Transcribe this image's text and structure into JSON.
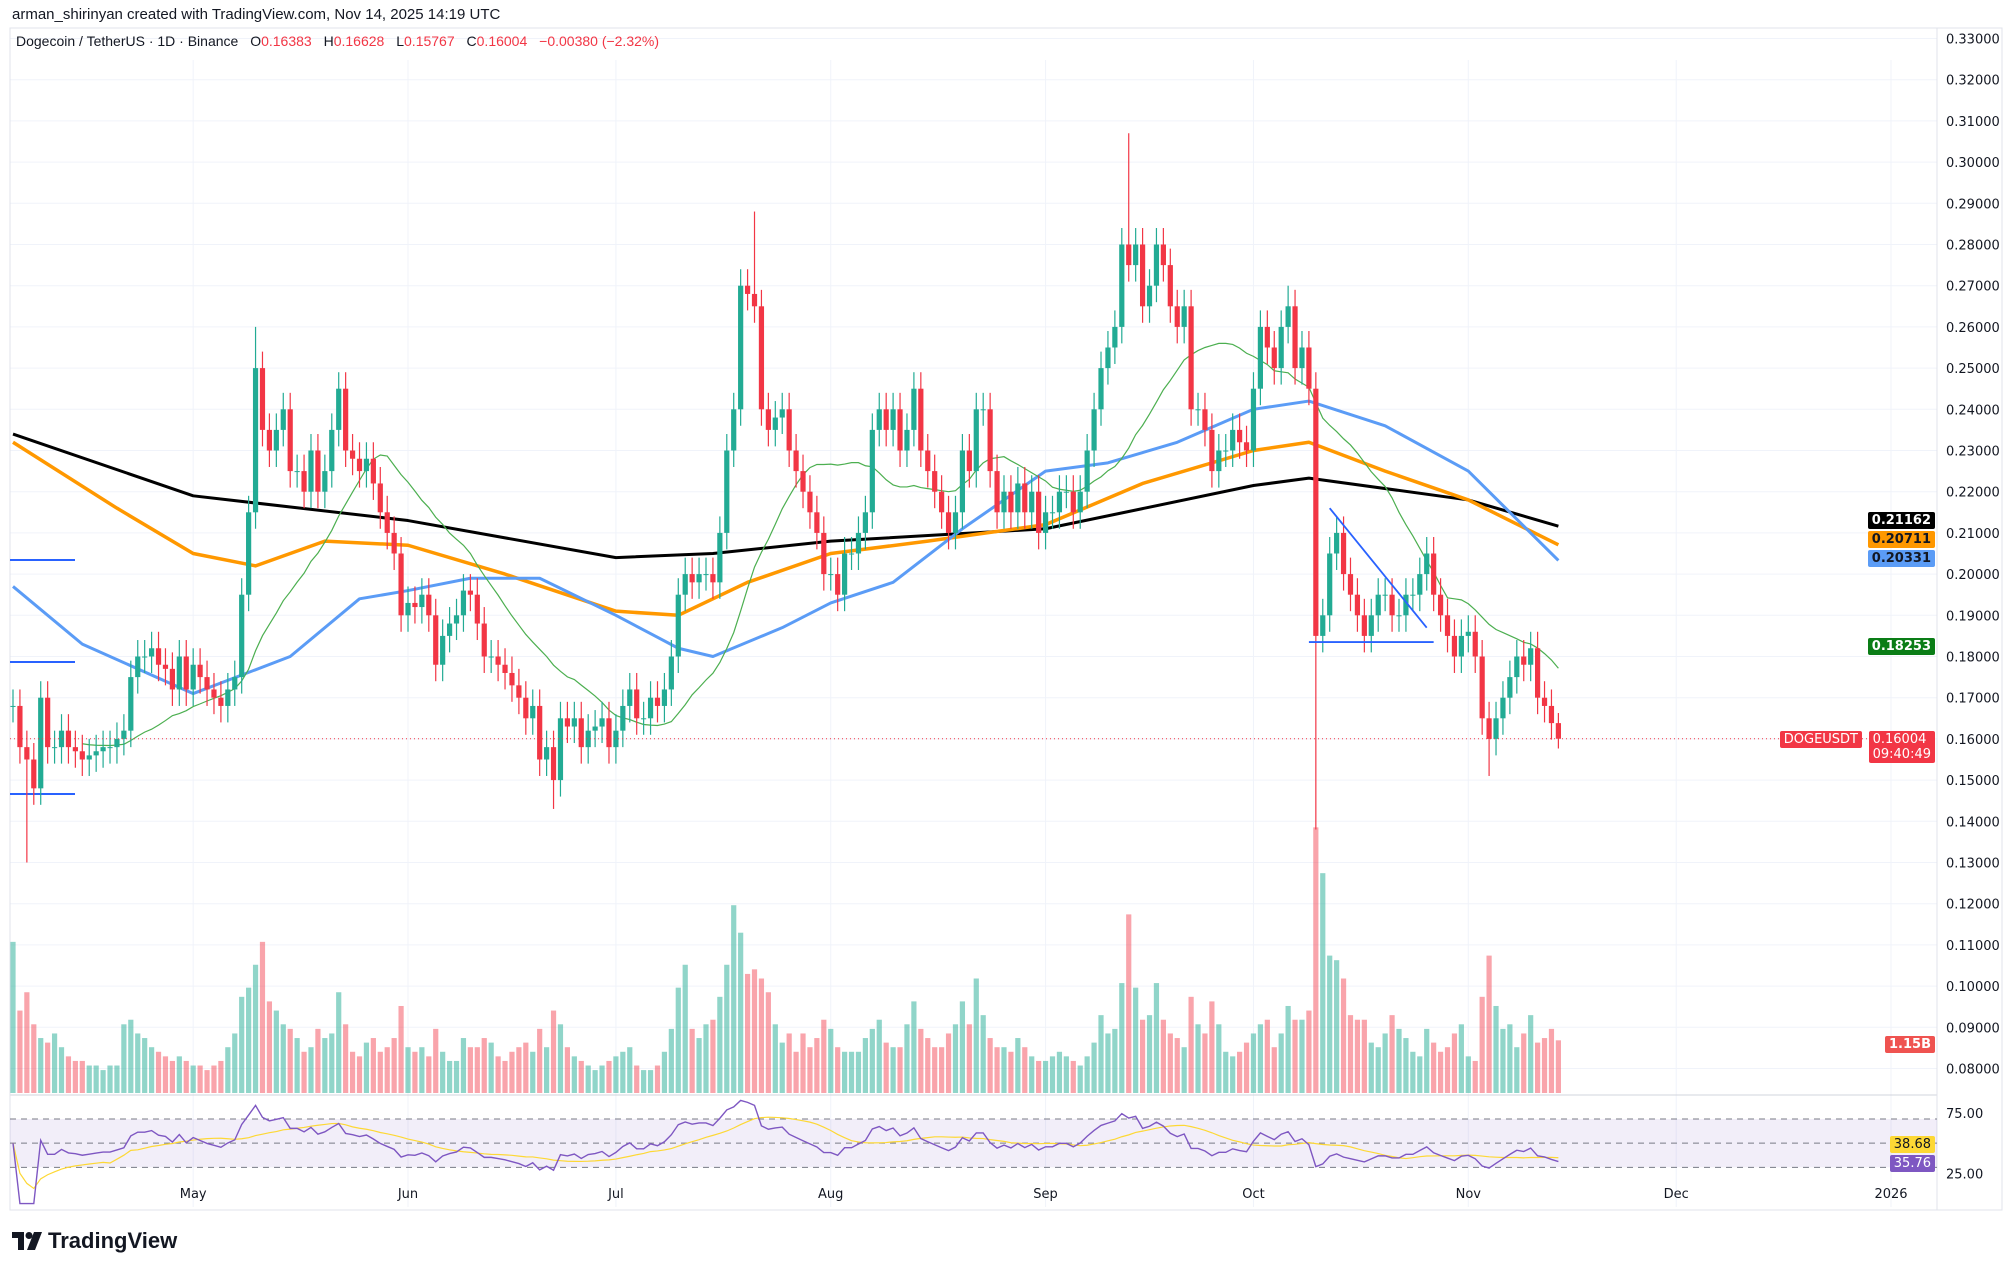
{
  "credit": "arman_shirinyan created with TradingView.com, Nov 14, 2025 14:19 UTC",
  "symbol": {
    "title": "Dogecoin / TetherUS · 1D · Binance",
    "open_label": "O",
    "open": "0.16383",
    "high_label": "H",
    "high": "0.16628",
    "low_label": "L",
    "low": "0.15767",
    "close_label": "C",
    "close": "0.16004",
    "change": "−0.00380 (−2.32%)"
  },
  "tags": {
    "ma200": "0.21162",
    "ma100": "0.20711",
    "ma50": "0.20331",
    "ma20": "0.18253",
    "symbol": "DOGEUSDT",
    "price": "0.16004",
    "countdown": "09:40:49",
    "volume": "1.15B",
    "rsi_ma": "38.68",
    "rsi": "35.76"
  },
  "logo": "TradingView",
  "colors": {
    "up": "#22ab94",
    "down": "#f23645",
    "ma20": "#4caf50",
    "ma50": "#5b9cf6",
    "ma100": "#ff9800",
    "ma200": "#000000",
    "rsi": "#7e57c2",
    "rsi_ma": "#fdd835",
    "drawing": "#2962ff"
  },
  "chart_data": {
    "type": "candlestick",
    "start_date": "2025-04-05",
    "price_axis": {
      "ylim": [
        0.075,
        0.335
      ],
      "ticks": [
        "0.33000",
        "0.32000",
        "0.31000",
        "0.30000",
        "0.29000",
        "0.28000",
        "0.27000",
        "0.26000",
        "0.25000",
        "0.24000",
        "0.23000",
        "0.22000",
        "0.21000",
        "0.20000",
        "0.19000",
        "0.18000",
        "0.17000",
        "0.16000",
        "0.15000",
        "0.14000",
        "0.13000",
        "0.12000",
        "0.11000",
        "0.10000",
        "0.09000",
        "0.08000"
      ]
    },
    "time_axis": [
      {
        "label": "May",
        "date": "2025-05-01"
      },
      {
        "label": "Jun",
        "date": "2025-06-01"
      },
      {
        "label": "Jul",
        "date": "2025-07-01"
      },
      {
        "label": "Aug",
        "date": "2025-08-01"
      },
      {
        "label": "Sep",
        "date": "2025-09-01"
      },
      {
        "label": "Oct",
        "date": "2025-10-01"
      },
      {
        "label": "Nov",
        "date": "2025-11-01"
      },
      {
        "label": "Dec",
        "date": "2025-12-01"
      },
      {
        "label": "2026",
        "date": "2026-01-01"
      }
    ],
    "closes": [
      0.168,
      0.158,
      0.155,
      0.148,
      0.17,
      0.158,
      0.158,
      0.162,
      0.158,
      0.157,
      0.155,
      0.156,
      0.157,
      0.158,
      0.158,
      0.16,
      0.162,
      0.175,
      0.18,
      0.18,
      0.182,
      0.178,
      0.177,
      0.172,
      0.18,
      0.172,
      0.178,
      0.175,
      0.172,
      0.17,
      0.168,
      0.172,
      0.175,
      0.195,
      0.215,
      0.25,
      0.235,
      0.23,
      0.235,
      0.24,
      0.225,
      0.225,
      0.22,
      0.23,
      0.22,
      0.225,
      0.235,
      0.245,
      0.23,
      0.228,
      0.225,
      0.228,
      0.222,
      0.215,
      0.21,
      0.205,
      0.19,
      0.193,
      0.192,
      0.195,
      0.19,
      0.178,
      0.185,
      0.188,
      0.19,
      0.196,
      0.195,
      0.188,
      0.18,
      0.18,
      0.178,
      0.176,
      0.173,
      0.17,
      0.165,
      0.168,
      0.155,
      0.158,
      0.15,
      0.165,
      0.163,
      0.165,
      0.158,
      0.162,
      0.163,
      0.165,
      0.158,
      0.162,
      0.168,
      0.172,
      0.165,
      0.165,
      0.17,
      0.168,
      0.172,
      0.18,
      0.195,
      0.2,
      0.198,
      0.2,
      0.2,
      0.198,
      0.21,
      0.23,
      0.24,
      0.27,
      0.268,
      0.265,
      0.24,
      0.235,
      0.238,
      0.24,
      0.23,
      0.225,
      0.22,
      0.215,
      0.21,
      0.2,
      0.2,
      0.195,
      0.205,
      0.205,
      0.21,
      0.215,
      0.235,
      0.24,
      0.235,
      0.24,
      0.23,
      0.235,
      0.245,
      0.23,
      0.225,
      0.22,
      0.215,
      0.21,
      0.215,
      0.23,
      0.225,
      0.24,
      0.24,
      0.225,
      0.215,
      0.22,
      0.215,
      0.222,
      0.215,
      0.22,
      0.21,
      0.215,
      0.215,
      0.22,
      0.22,
      0.215,
      0.22,
      0.23,
      0.24,
      0.25,
      0.255,
      0.26,
      0.28,
      0.275,
      0.28,
      0.265,
      0.27,
      0.28,
      0.275,
      0.265,
      0.26,
      0.265,
      0.24,
      0.24,
      0.235,
      0.225,
      0.23,
      0.23,
      0.235,
      0.232,
      0.23,
      0.245,
      0.26,
      0.255,
      0.25,
      0.26,
      0.265,
      0.25,
      0.255,
      0.245,
      0.185,
      0.19,
      0.205,
      0.21,
      0.2,
      0.195,
      0.19,
      0.185,
      0.19,
      0.195,
      0.195,
      0.19,
      0.19,
      0.195,
      0.195,
      0.2,
      0.205,
      0.195,
      0.19,
      0.185,
      0.18,
      0.185,
      0.186,
      0.18,
      0.165,
      0.16,
      0.165,
      0.17,
      0.175,
      0.18,
      0.178,
      0.182,
      0.17,
      0.168,
      0.16383,
      0.16004
    ],
    "extremes": [
      {
        "date": "2025-04-07",
        "low": 0.13
      },
      {
        "date": "2025-05-10",
        "high": 0.26
      },
      {
        "date": "2025-06-22",
        "low": 0.143
      },
      {
        "date": "2025-07-21",
        "high": 0.288
      },
      {
        "date": "2025-09-13",
        "high": 0.307
      },
      {
        "date": "2025-10-06",
        "high": 0.27
      },
      {
        "date": "2025-10-10",
        "low": 0.138
      },
      {
        "date": "2025-11-04",
        "low": 0.151
      },
      {
        "date": "2025-11-14",
        "high": 0.16628,
        "low": 0.15767
      }
    ],
    "volume_billions": [
      3.3,
      1.8,
      2.2,
      1.5,
      1.2,
      1.1,
      1.3,
      1.0,
      0.8,
      0.7,
      0.7,
      0.6,
      0.6,
      0.5,
      0.6,
      0.6,
      1.5,
      1.6,
      1.3,
      1.2,
      1.0,
      0.9,
      0.8,
      0.7,
      0.8,
      0.7,
      0.6,
      0.6,
      0.5,
      0.6,
      0.7,
      1.0,
      1.3,
      2.1,
      2.3,
      2.8,
      3.3,
      2.0,
      1.8,
      1.5,
      1.4,
      1.2,
      0.9,
      1.0,
      1.4,
      1.2,
      1.3,
      2.2,
      1.5,
      0.9,
      0.8,
      1.1,
      1.2,
      0.9,
      1.0,
      1.2,
      1.9,
      1.0,
      0.9,
      1.0,
      0.8,
      1.4,
      0.9,
      0.7,
      0.7,
      1.2,
      1.0,
      1.0,
      1.2,
      1.1,
      0.8,
      0.7,
      0.9,
      1.0,
      1.1,
      0.9,
      1.4,
      1.0,
      1.8,
      1.5,
      1.0,
      0.8,
      0.7,
      0.6,
      0.5,
      0.6,
      0.7,
      0.8,
      0.9,
      1.0,
      0.6,
      0.5,
      0.5,
      0.6,
      0.9,
      1.4,
      2.3,
      2.8,
      1.4,
      1.2,
      1.5,
      1.6,
      2.1,
      2.8,
      4.1,
      3.5,
      2.6,
      2.7,
      2.5,
      2.2,
      1.5,
      1.1,
      1.3,
      0.9,
      1.3,
      1.0,
      1.2,
      1.6,
      1.4,
      1.0,
      0.9,
      0.9,
      0.9,
      1.2,
      1.4,
      1.6,
      1.1,
      1.0,
      1.0,
      1.5,
      2.0,
      1.4,
      1.2,
      1.0,
      1.0,
      1.3,
      1.5,
      2.0,
      1.5,
      2.5,
      1.7,
      1.2,
      1.0,
      1.0,
      0.9,
      1.2,
      1.0,
      0.8,
      0.7,
      0.7,
      0.8,
      0.9,
      0.8,
      0.7,
      0.6,
      0.8,
      1.1,
      1.7,
      1.3,
      1.4,
      2.4,
      3.9,
      2.3,
      1.6,
      1.7,
      2.4,
      1.6,
      1.3,
      1.2,
      1.0,
      2.1,
      1.5,
      1.3,
      2.0,
      1.5,
      0.9,
      0.8,
      0.9,
      1.1,
      1.3,
      1.5,
      1.6,
      1.0,
      1.3,
      1.9,
      1.6,
      1.6,
      1.8,
      5.8,
      4.8,
      3.0,
      2.9,
      2.5,
      1.7,
      1.6,
      1.6,
      1.1,
      1.0,
      1.3,
      1.7,
      1.4,
      1.2,
      0.9,
      0.8,
      1.4,
      1.1,
      0.9,
      1.0,
      1.3,
      1.5,
      0.8,
      0.7,
      2.1,
      3.0,
      1.9,
      1.4,
      1.5,
      1.0,
      1.3,
      1.7,
      1.1,
      1.2,
      1.4,
      1.15
    ],
    "moving_averages": {
      "ma200": [
        [
          "2025-04-05",
          0.234
        ],
        [
          "2025-05-01",
          0.219
        ],
        [
          "2025-06-01",
          0.213
        ],
        [
          "2025-07-01",
          0.204
        ],
        [
          "2025-07-15",
          0.205
        ],
        [
          "2025-08-01",
          0.208
        ],
        [
          "2025-09-01",
          0.211
        ],
        [
          "2025-10-01",
          0.2215
        ],
        [
          "2025-10-09",
          0.2233
        ],
        [
          "2025-11-01",
          0.218
        ],
        [
          "2025-11-14",
          0.21162
        ]
      ],
      "ma100": [
        [
          "2025-04-05",
          0.232
        ],
        [
          "2025-04-20",
          0.216
        ],
        [
          "2025-05-01",
          0.205
        ],
        [
          "2025-05-10",
          0.202
        ],
        [
          "2025-05-20",
          0.208
        ],
        [
          "2025-06-01",
          0.207
        ],
        [
          "2025-06-15",
          0.2
        ],
        [
          "2025-07-01",
          0.191
        ],
        [
          "2025-07-10",
          0.19
        ],
        [
          "2025-07-20",
          0.198
        ],
        [
          "2025-08-01",
          0.205
        ],
        [
          "2025-08-15",
          0.208
        ],
        [
          "2025-09-01",
          0.212
        ],
        [
          "2025-09-15",
          0.222
        ],
        [
          "2025-10-01",
          0.23
        ],
        [
          "2025-10-09",
          0.232
        ],
        [
          "2025-10-20",
          0.225
        ],
        [
          "2025-11-01",
          0.218
        ],
        [
          "2025-11-14",
          0.20711
        ]
      ],
      "ma50": [
        [
          "2025-04-05",
          0.197
        ],
        [
          "2025-04-15",
          0.183
        ],
        [
          "2025-05-01",
          0.171
        ],
        [
          "2025-05-15",
          0.18
        ],
        [
          "2025-05-25",
          0.194
        ],
        [
          "2025-06-01",
          0.196
        ],
        [
          "2025-06-10",
          0.199
        ],
        [
          "2025-06-20",
          0.199
        ],
        [
          "2025-07-01",
          0.19
        ],
        [
          "2025-07-10",
          0.182
        ],
        [
          "2025-07-15",
          0.18
        ],
        [
          "2025-07-25",
          0.187
        ],
        [
          "2025-08-01",
          0.193
        ],
        [
          "2025-08-10",
          0.198
        ],
        [
          "2025-08-20",
          0.211
        ],
        [
          "2025-09-01",
          0.225
        ],
        [
          "2025-09-10",
          0.227
        ],
        [
          "2025-09-20",
          0.232
        ],
        [
          "2025-10-01",
          0.24
        ],
        [
          "2025-10-09",
          0.242
        ],
        [
          "2025-10-20",
          0.236
        ],
        [
          "2025-11-01",
          0.225
        ],
        [
          "2025-11-14",
          0.20331
        ]
      ]
    },
    "drawings": {
      "descending_line": [
        [
          "2025-10-12",
          0.216
        ],
        [
          "2025-10-26",
          0.187
        ]
      ],
      "support_line": [
        [
          "2025-10-09",
          0.1835
        ],
        [
          "2025-10-27",
          0.1835
        ]
      ]
    },
    "rsi": {
      "levels": [
        75,
        25
      ],
      "band": [
        70,
        30
      ],
      "tick_labels": [
        "75.00",
        "25.00"
      ]
    }
  }
}
